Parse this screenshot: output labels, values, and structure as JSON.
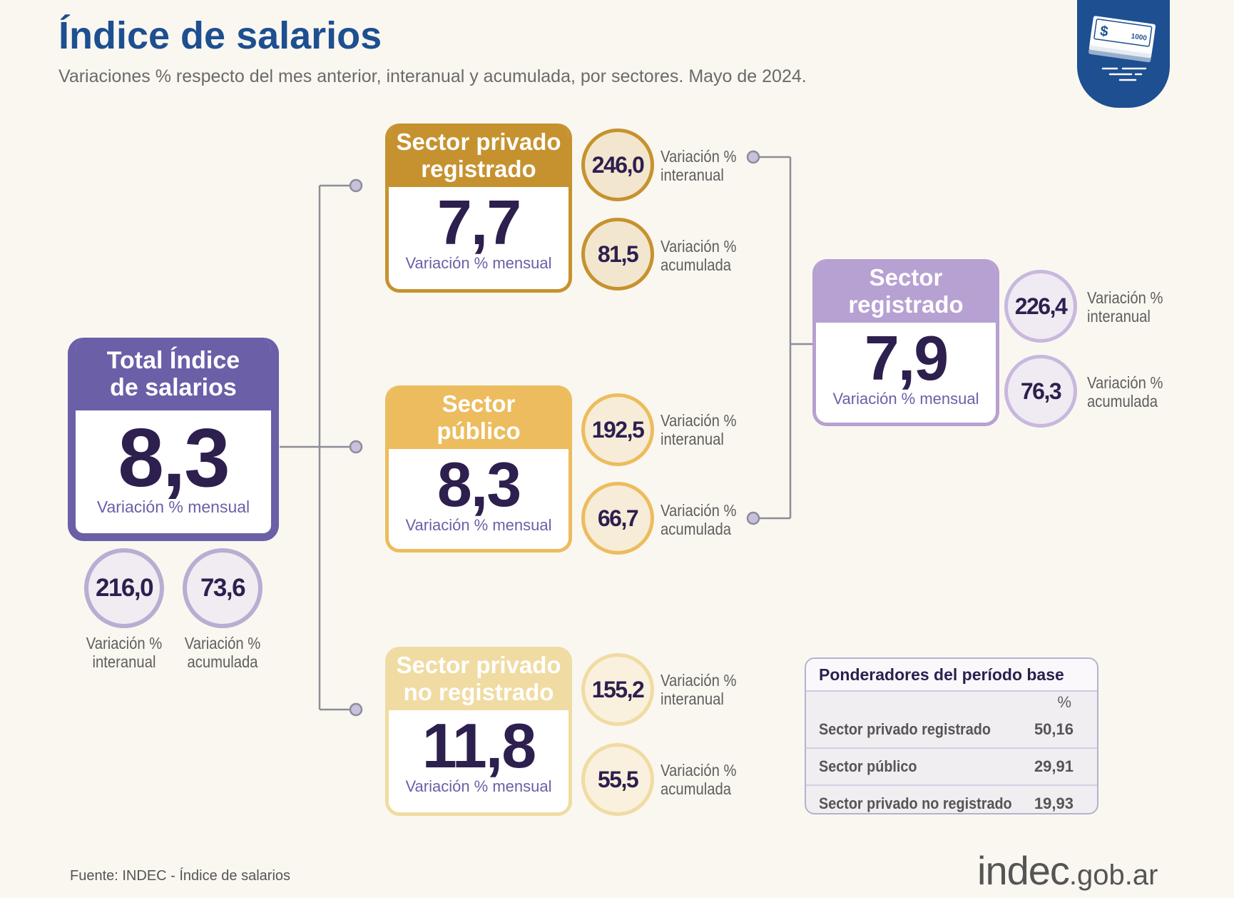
{
  "title": "Índice de salarios",
  "subtitle": "Variaciones % respecto del mes anterior, interanual y acumulada, por sectores. Mayo de 2024.",
  "badge": {
    "icon": "money-stack-icon",
    "note_label": "1000",
    "currency_symbol": "$"
  },
  "labels": {
    "mensual": "Variación % mensual",
    "interanual_1": "Variación %",
    "interanual_2": "interanual",
    "acumulada_1": "Variación %",
    "acumulada_2": "acumulada"
  },
  "total": {
    "title_1": "Total Índice",
    "title_2": "de salarios",
    "mensual": "8,3",
    "interanual": "216,0",
    "acumulada": "73,6"
  },
  "privado_registrado": {
    "title_1": "Sector privado",
    "title_2": "registrado",
    "mensual": "7,7",
    "interanual": "246,0",
    "acumulada": "81,5"
  },
  "publico": {
    "title_1": "Sector",
    "title_2": "público",
    "mensual": "8,3",
    "interanual": "192,5",
    "acumulada": "66,7"
  },
  "privado_no_registrado": {
    "title_1": "Sector privado",
    "title_2": "no registrado",
    "mensual": "11,8",
    "interanual": "155,2",
    "acumulada": "55,5"
  },
  "registrado": {
    "title_1": "Sector",
    "title_2": "registrado",
    "mensual": "7,9",
    "interanual": "226,4",
    "acumulada": "76,3"
  },
  "ponderadores": {
    "title": "Ponderadores del período base",
    "unit": "%",
    "rows": [
      {
        "label": "Sector privado registrado",
        "value": "50,16"
      },
      {
        "label": "Sector público",
        "value": "29,91"
      },
      {
        "label": "Sector privado no registrado",
        "value": "19,93"
      }
    ]
  },
  "colors": {
    "title": "#1d4f91",
    "total": "#6b5fa8",
    "privado_registrado": "#c6922f",
    "publico": "#ecbc5e",
    "privado_no_registrado": "#f0dba2",
    "registrado": "#b7a0d2",
    "number": "#2d1f4e"
  },
  "footer": {
    "source": "Fuente: INDEC - Índice de salarios",
    "logo_main": "indec",
    "logo_domain": ".gob.ar"
  }
}
